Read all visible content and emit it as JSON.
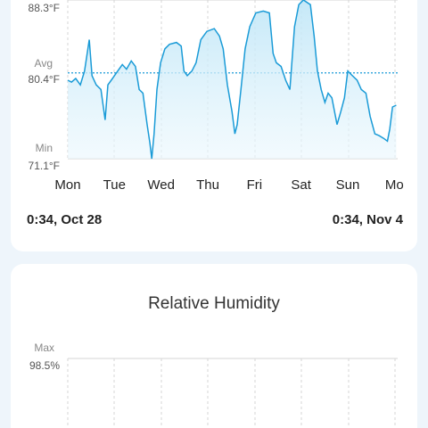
{
  "chart_data": [
    {
      "type": "line",
      "categories": [
        "Mon",
        "Tue",
        "Wed",
        "Thu",
        "Fri",
        "Sat",
        "Sun",
        "Mo"
      ],
      "x": [
        0,
        0.08,
        0.17,
        0.27,
        0.36,
        0.46,
        0.52,
        0.61,
        0.71,
        0.8,
        0.86,
        0.96,
        1.07,
        1.17,
        1.26,
        1.36,
        1.45,
        1.53,
        1.61,
        1.7,
        1.76,
        1.8,
        1.85,
        1.91,
        1.99,
        2.08,
        2.18,
        2.33,
        2.43,
        2.49,
        2.56,
        2.66,
        2.75,
        2.85,
        2.98,
        3.14,
        3.25,
        3.33,
        3.42,
        3.52,
        3.58,
        3.63,
        3.71,
        3.8,
        3.9,
        4.03,
        4.19,
        4.32,
        4.4,
        4.47,
        4.57,
        4.67,
        4.76,
        4.86,
        4.95,
        5.05,
        5.2,
        5.28,
        5.35,
        5.43,
        5.51,
        5.58,
        5.66,
        5.77,
        5.85,
        5.93,
        6.0,
        6.1,
        6.2,
        6.29,
        6.39,
        6.48,
        6.58,
        6.67,
        6.77,
        6.85,
        6.9,
        6.96,
        7.04
      ],
      "series": [
        {
          "color": "#1a9bd7",
          "values": [
            79.6,
            79.4,
            79.8,
            79.1,
            80.6,
            84.0,
            80.1,
            79.1,
            78.6,
            75.3,
            79.1,
            79.8,
            80.6,
            81.3,
            80.8,
            81.7,
            81.1,
            78.6,
            78.2,
            74.8,
            72.8,
            71.1,
            73.8,
            78.6,
            81.5,
            83.0,
            83.5,
            83.7,
            83.3,
            80.6,
            80.1,
            80.6,
            81.5,
            84.0,
            84.9,
            85.2,
            84.4,
            83.0,
            79.1,
            76.2,
            73.8,
            74.8,
            78.6,
            83.0,
            85.4,
            86.9,
            87.1,
            86.9,
            82.5,
            81.5,
            81.1,
            79.6,
            78.6,
            85.4,
            87.8,
            88.3,
            87.8,
            84.4,
            80.6,
            78.6,
            77.2,
            78.2,
            77.7,
            74.8,
            76.2,
            77.7,
            80.6,
            80.1,
            79.6,
            78.6,
            78.2,
            75.7,
            73.8,
            73.6,
            73.3,
            73.0,
            74.3,
            76.7,
            76.9
          ]
        }
      ],
      "xlim": [
        0,
        7.07
      ],
      "ylim": [
        71.1,
        88.3
      ],
      "yticks": [
        {
          "value": 88.3,
          "label": "88.3°F"
        },
        {
          "value": 80.4,
          "label": "80.4°F"
        },
        {
          "value": 71.1,
          "label": "71.1°F"
        }
      ],
      "avg_label": "Avg",
      "min_label": "Min",
      "start_label": "0:34, Oct 28",
      "end_label": "0:34, Nov 4"
    },
    {
      "type": "line",
      "title": "Relative Humidity",
      "max_label": "Max",
      "yticks": [
        {
          "value": 98.5,
          "label": "98.5%"
        }
      ]
    }
  ]
}
